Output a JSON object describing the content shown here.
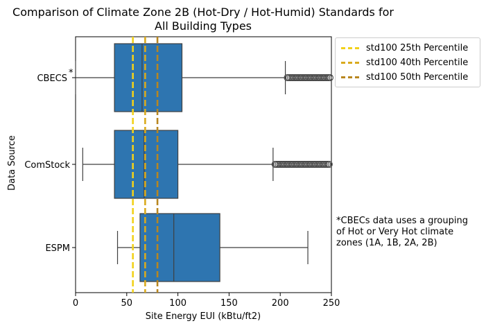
{
  "chart_data": {
    "type": "boxplot",
    "orientation": "horizontal",
    "title": "Comparison of Climate Zone 2B (Hot-Dry / Hot-Humid) Standards for\nAll Building Types",
    "xlabel": "Site Energy EUI (kBtu/ft2)",
    "ylabel": "Data Source",
    "xlim": [
      0,
      250
    ],
    "xticks": [
      0,
      50,
      100,
      150,
      200,
      250
    ],
    "categories": [
      "CBECS",
      "ComStock",
      "ESPM"
    ],
    "category_markers": {
      "CBECS": "*"
    },
    "boxes": [
      {
        "category": "CBECS",
        "whisker_low": 0,
        "q1": 38,
        "median": 65,
        "q3": 104,
        "whisker_high": 205,
        "outliers_from": 205,
        "outliers_to": 250
      },
      {
        "category": "ComStock",
        "whisker_low": 7,
        "q1": 38,
        "median": 67,
        "q3": 100,
        "whisker_high": 193,
        "outliers_from": 193,
        "outliers_to": 250
      },
      {
        "category": "ESPM",
        "whisker_low": 41,
        "q1": 63,
        "median": 96,
        "q3": 141,
        "whisker_high": 227,
        "outliers_from": null,
        "outliers_to": null
      }
    ],
    "box_color": "#2e75b0",
    "reference_lines": [
      {
        "name": "std100 25th Percentile",
        "x": 56,
        "color": "#f2d11a"
      },
      {
        "name": "std100 40th Percentile",
        "x": 68,
        "color": "#d9aa1e"
      },
      {
        "name": "std100 50th Percentile",
        "x": 80,
        "color": "#b8861f"
      }
    ],
    "legend_position": "outside-top-right",
    "annotation": "*CBECs data uses a grouping\nof Hot or Very Hot climate\nzones (1A, 1B, 2A, 2B)",
    "grid": false
  }
}
